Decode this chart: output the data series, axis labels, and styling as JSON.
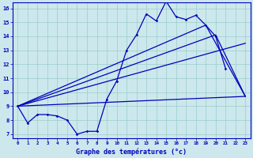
{
  "xlabel": "Graphe des températures (°c)",
  "bg_color": "#cce8ec",
  "line_color": "#0000bb",
  "grid_color": "#99cccc",
  "xmin": 0,
  "xmax": 23,
  "ymin": 7,
  "ymax": 16,
  "jagged_x": [
    0,
    1,
    2,
    3,
    4,
    5,
    6,
    7,
    8,
    9,
    10,
    11,
    12,
    13,
    14,
    15,
    16,
    17,
    18,
    19,
    20,
    21
  ],
  "jagged_y": [
    9.0,
    7.8,
    8.4,
    8.4,
    8.3,
    8.0,
    7.0,
    7.2,
    7.2,
    9.5,
    10.8,
    13.0,
    14.1,
    15.6,
    15.1,
    16.5,
    15.4,
    15.2,
    15.5,
    14.8,
    14.0,
    11.7
  ],
  "trend1_x": [
    0,
    23
  ],
  "trend1_y": [
    9.0,
    9.7
  ],
  "trend2_x": [
    0,
    19,
    23
  ],
  "trend2_y": [
    9.0,
    14.8,
    9.7
  ],
  "trend3_x": [
    0,
    20,
    23
  ],
  "trend3_y": [
    9.0,
    14.1,
    9.7
  ],
  "trend4_x": [
    0,
    23
  ],
  "trend4_y": [
    9.0,
    13.5
  ],
  "xtick_values": [
    0,
    1,
    2,
    3,
    4,
    5,
    6,
    7,
    8,
    9,
    10,
    11,
    12,
    13,
    14,
    15,
    16,
    17,
    18,
    19,
    20,
    21,
    22,
    23
  ],
  "ytick_values": [
    7,
    8,
    9,
    10,
    11,
    12,
    13,
    14,
    15,
    16
  ]
}
